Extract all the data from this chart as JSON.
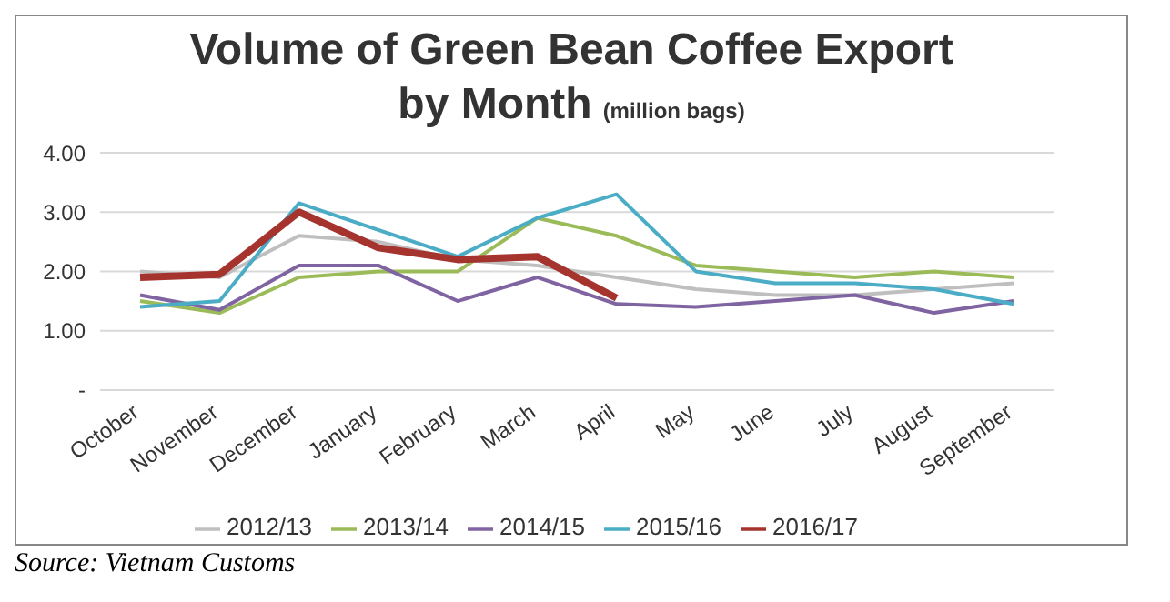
{
  "chart_data": {
    "type": "line",
    "title": "Volume of Green Bean Coffee Export by Month",
    "subtitle": "(million bags)",
    "categories": [
      "October",
      "November",
      "December",
      "January",
      "February",
      "March",
      "April",
      "May",
      "June",
      "July",
      "August",
      "September"
    ],
    "series": [
      {
        "name": "2012/13",
        "color": "#bfbfbf",
        "values": [
          2.0,
          1.9,
          2.6,
          2.5,
          2.2,
          2.1,
          1.9,
          1.7,
          1.6,
          1.6,
          1.7,
          1.8
        ]
      },
      {
        "name": "2013/14",
        "color": "#9bbb59",
        "values": [
          1.5,
          1.3,
          1.9,
          2.0,
          2.0,
          2.9,
          2.6,
          2.1,
          2.0,
          1.9,
          2.0,
          1.9
        ]
      },
      {
        "name": "2014/15",
        "color": "#8064a2",
        "values": [
          1.6,
          1.35,
          2.1,
          2.1,
          1.5,
          1.9,
          1.45,
          1.4,
          1.5,
          1.6,
          1.3,
          1.5
        ]
      },
      {
        "name": "2015/16",
        "color": "#4bacc6",
        "values": [
          1.4,
          1.5,
          3.15,
          2.7,
          2.25,
          2.9,
          3.3,
          2.0,
          1.8,
          1.8,
          1.7,
          1.45
        ]
      },
      {
        "name": "2016/17",
        "color": "#a5332e",
        "values": [
          1.9,
          1.95,
          3.0,
          2.4,
          2.2,
          2.25,
          1.55,
          null,
          null,
          null,
          null,
          null
        ]
      }
    ],
    "ylim": [
      0,
      4
    ],
    "yticks": [
      {
        "value": 0,
        "label": "-"
      },
      {
        "value": 1,
        "label": "1.00"
      },
      {
        "value": 2,
        "label": "2.00"
      },
      {
        "value": 3,
        "label": "3.00"
      },
      {
        "value": 4,
        "label": "4.00"
      }
    ],
    "grid": "y",
    "legend": "bottom",
    "marker": "none",
    "line_style": "solid",
    "annotations": [
      "Source: Vietnam Customs"
    ]
  }
}
